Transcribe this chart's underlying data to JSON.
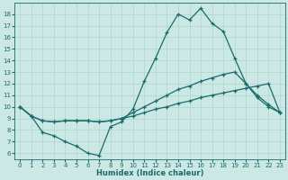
{
  "x_values": [
    0,
    1,
    2,
    3,
    4,
    5,
    6,
    7,
    8,
    9,
    10,
    11,
    12,
    13,
    14,
    15,
    16,
    17,
    18,
    19,
    20,
    21,
    22,
    23
  ],
  "line1": [
    10.0,
    9.2,
    7.8,
    7.5,
    7.0,
    6.6,
    6.0,
    5.8,
    8.3,
    8.7,
    9.8,
    12.2,
    14.2,
    16.4,
    18.0,
    17.5,
    18.5,
    17.2,
    16.5,
    14.2,
    12.0,
    10.8,
    10.0,
    9.5
  ],
  "line2": [
    10.0,
    9.2,
    8.8,
    8.7,
    8.8,
    8.8,
    8.8,
    8.7,
    8.8,
    9.0,
    9.5,
    10.0,
    10.5,
    11.0,
    11.5,
    11.8,
    12.2,
    12.5,
    12.8,
    13.0,
    12.0,
    11.0,
    10.2,
    9.5
  ],
  "line3": [
    10.0,
    9.2,
    8.8,
    8.7,
    8.8,
    8.8,
    8.8,
    8.7,
    8.8,
    9.0,
    9.2,
    9.5,
    9.8,
    10.0,
    10.3,
    10.5,
    10.8,
    11.0,
    11.2,
    11.4,
    11.6,
    11.8,
    12.0,
    9.5
  ],
  "color": "#1a6b6b",
  "bg_color": "#cce8e5",
  "grid_color": "#aed4cf",
  "xlabel": "Humidex (Indice chaleur)",
  "ylim": [
    5.5,
    19.0
  ],
  "xlim": [
    -0.5,
    23.5
  ],
  "yticks": [
    6,
    7,
    8,
    9,
    10,
    11,
    12,
    13,
    14,
    15,
    16,
    17,
    18
  ],
  "xticks": [
    0,
    1,
    2,
    3,
    4,
    5,
    6,
    7,
    8,
    9,
    10,
    11,
    12,
    13,
    14,
    15,
    16,
    17,
    18,
    19,
    20,
    21,
    22,
    23
  ]
}
